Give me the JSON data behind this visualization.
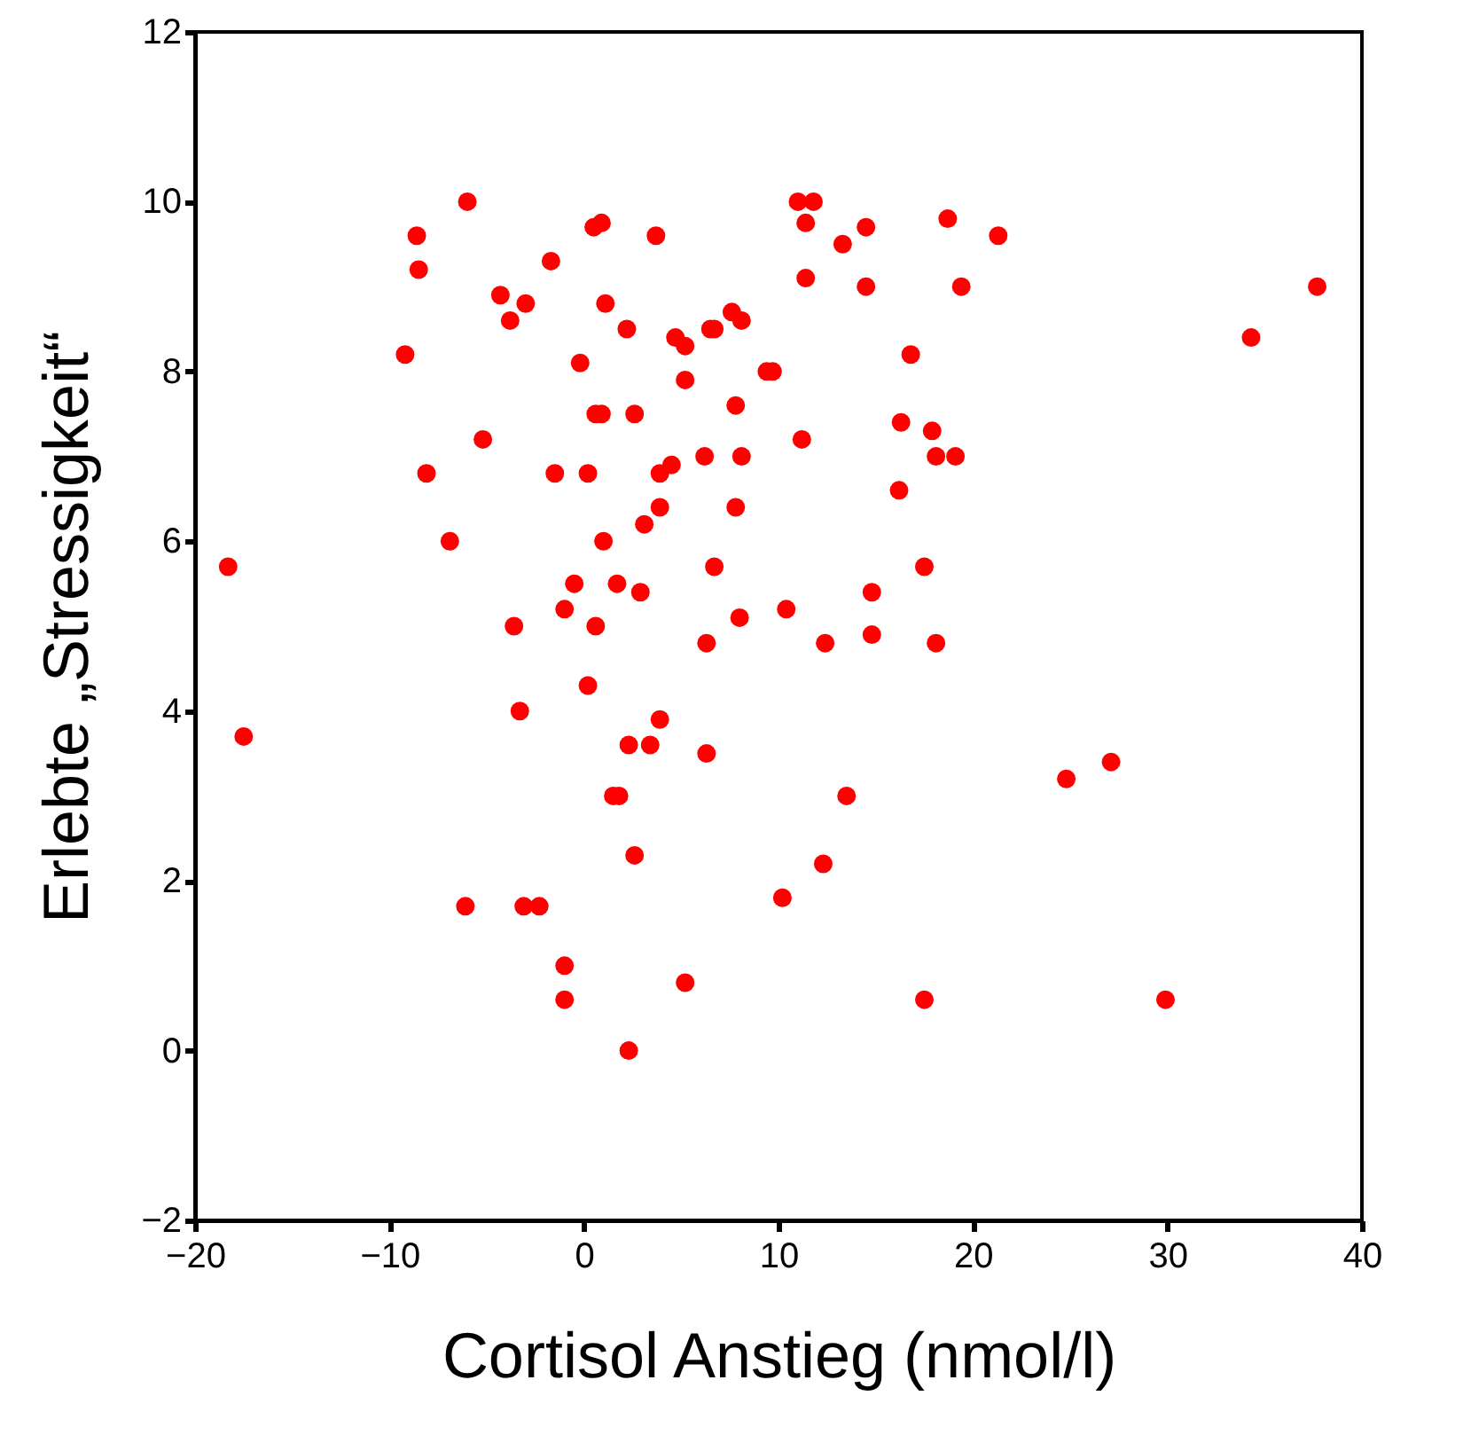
{
  "chart_data": {
    "type": "scatter",
    "xlabel": "Cortisol Anstieg (nmol/l)",
    "ylabel": "Erlebte „Stressigkeit“",
    "marker": "circle",
    "grid": false,
    "legend": false,
    "xlim": [
      -20,
      40
    ],
    "xticks": [
      -20,
      -10,
      0,
      10,
      20,
      30,
      40
    ],
    "ylim": [
      -2,
      12
    ],
    "yticks": [
      -2,
      0,
      2,
      4,
      6,
      8,
      10,
      12
    ],
    "series": [
      {
        "color": "#ff0000",
        "x": [
          -18.3,
          -17.5,
          -9.2,
          -8.6,
          -8.5,
          -8.1,
          -6.9,
          -6.0,
          -6.1,
          -5.2,
          -4.3,
          -3.8,
          -3.0,
          -3.6,
          -3.3,
          -3.1,
          -2.3,
          -1.7,
          -1.5,
          -1.0,
          -1.0,
          -1.0,
          -0.5,
          -0.2,
          0.2,
          0.2,
          0.5,
          0.9,
          0.6,
          0.6,
          0.9,
          1.0,
          1.1,
          1.5,
          1.8,
          1.7,
          2.2,
          2.3,
          2.3,
          2.6,
          2.6,
          2.9,
          3.1,
          3.4,
          3.7,
          3.9,
          3.9,
          3.9,
          4.5,
          4.7,
          5.2,
          5.2,
          5.2,
          6.2,
          6.3,
          6.3,
          6.5,
          6.7,
          6.7,
          7.6,
          7.8,
          7.8,
          8.0,
          8.1,
          8.1,
          9.4,
          9.7,
          10.2,
          10.4,
          11.0,
          11.8,
          11.4,
          11.4,
          11.2,
          12.4,
          12.3,
          13.3,
          13.5,
          14.5,
          14.5,
          14.8,
          14.8,
          16.3,
          17.9,
          18.1,
          19.1,
          16.2,
          16.8,
          17.5,
          18.7,
          21.3,
          19.4,
          37.7,
          34.3,
          24.8,
          27.1,
          29.9,
          17.5,
          18.1
        ],
        "values": [
          5.7,
          3.7,
          8.2,
          9.6,
          9.2,
          6.8,
          6.0,
          10.0,
          1.7,
          7.2,
          8.9,
          8.6,
          8.8,
          5.0,
          4.0,
          1.7,
          1.7,
          9.3,
          6.8,
          5.2,
          1.0,
          0.6,
          5.5,
          8.1,
          6.8,
          4.3,
          9.7,
          9.75,
          5.0,
          7.5,
          7.5,
          6.0,
          8.8,
          3.0,
          3.0,
          5.5,
          8.5,
          3.6,
          0.0,
          7.5,
          2.3,
          5.4,
          6.2,
          3.6,
          9.6,
          6.4,
          6.8,
          3.9,
          6.9,
          8.4,
          8.3,
          7.9,
          0.8,
          7.0,
          4.8,
          3.5,
          8.5,
          8.5,
          5.7,
          8.7,
          7.6,
          6.4,
          5.1,
          7.0,
          8.6,
          8.0,
          8.0,
          1.8,
          5.2,
          10.0,
          10.0,
          9.75,
          9.1,
          7.2,
          4.8,
          2.2,
          9.5,
          3.0,
          9.7,
          9.0,
          5.4,
          4.9,
          7.4,
          7.3,
          7.0,
          7.0,
          6.6,
          8.2,
          5.7,
          9.8,
          9.6,
          9.0,
          9.0,
          8.4,
          3.2,
          3.4,
          0.6,
          0.6,
          4.8
        ]
      }
    ]
  }
}
